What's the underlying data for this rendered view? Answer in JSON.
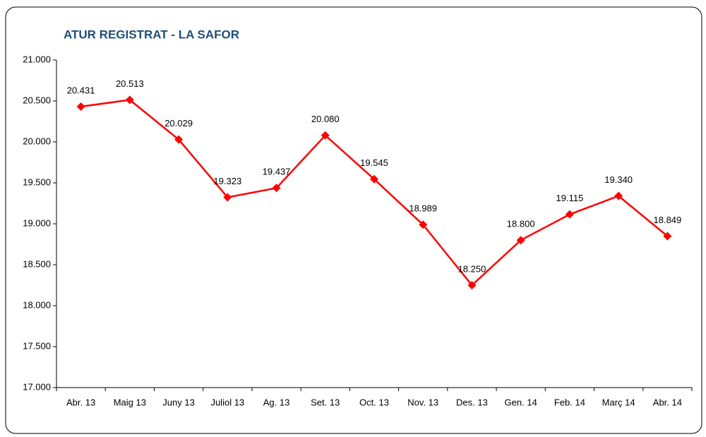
{
  "chart_data": {
    "type": "line",
    "title": "ATUR REGISTRAT - LA SAFOR",
    "categories": [
      "Abr. 13",
      "Maig 13",
      "Juny 13",
      "Juliol 13",
      "Ag. 13",
      "Set. 13",
      "Oct. 13",
      "Nov. 13",
      "Des. 13",
      "Gen. 14",
      "Feb. 14",
      "Març 14",
      "Abr. 14"
    ],
    "series": [
      {
        "color": "#ff0000",
        "values": [
          20431,
          20513,
          20029,
          19323,
          19437,
          20080,
          19545,
          18989,
          18250,
          18800,
          19115,
          19340,
          18849
        ],
        "value_labels": [
          "20.431",
          "20.513",
          "20.029",
          "19.323",
          "19.437",
          "20.080",
          "19.545",
          "18.989",
          "18.250",
          "18.800",
          "19.115",
          "19.340",
          "18.849"
        ]
      }
    ],
    "ylim": [
      17000,
      21000
    ],
    "yticks": [
      {
        "value": 17000,
        "label": "17.000"
      },
      {
        "value": 17500,
        "label": "17.500"
      },
      {
        "value": 18000,
        "label": "18.000"
      },
      {
        "value": 18500,
        "label": "18.500"
      },
      {
        "value": 19000,
        "label": "19.000"
      },
      {
        "value": 19500,
        "label": "19.500"
      },
      {
        "value": 20000,
        "label": "20.000"
      },
      {
        "value": 20500,
        "label": "20.500"
      },
      {
        "value": 21000,
        "label": "21.000"
      }
    ]
  }
}
